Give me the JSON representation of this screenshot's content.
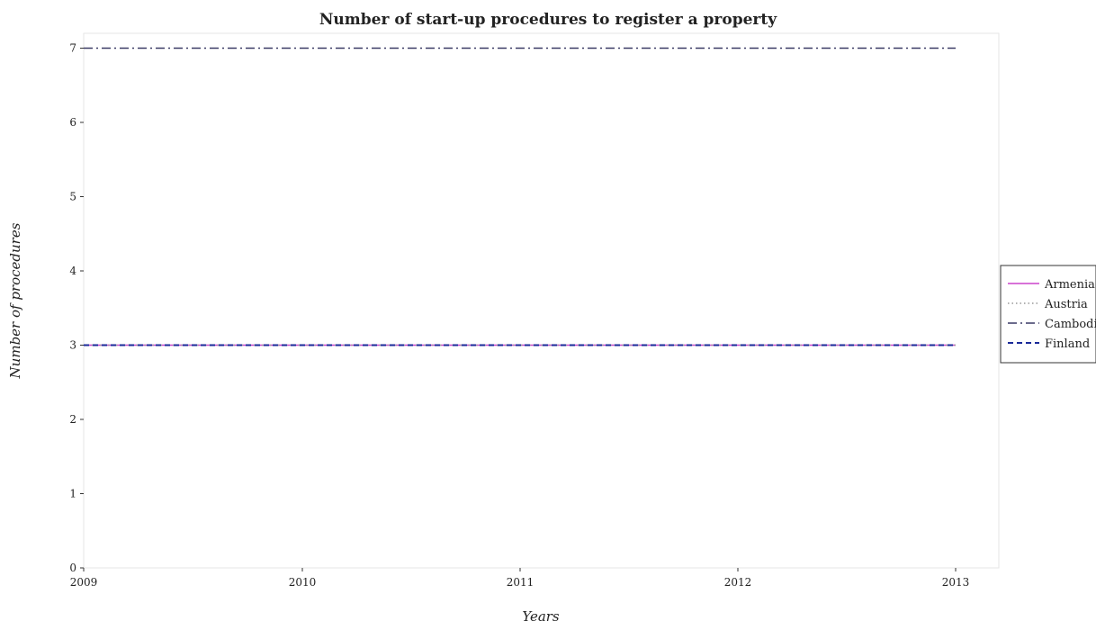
{
  "title": "Number of start-up procedures to register a property",
  "chart_data": {
    "type": "line",
    "title": "Number of start-up procedures to register a property",
    "xlabel": "Years",
    "ylabel": "Number of procedures",
    "categories": [
      "2009",
      "2010",
      "2011",
      "2012",
      "2013"
    ],
    "ylim": [
      0,
      7.2
    ],
    "yticks": [
      "0",
      "1",
      "2",
      "3",
      "4",
      "5",
      "6",
      "7"
    ],
    "grid": false,
    "legend_position": "right",
    "series": [
      {
        "name": "Armenia",
        "values": [
          3,
          3,
          3,
          3,
          3
        ],
        "color": "#cc44cc",
        "style": "solid"
      },
      {
        "name": "Austria",
        "values": [
          3,
          3,
          3,
          3,
          3
        ],
        "color": "#999999",
        "style": "dotted"
      },
      {
        "name": "Cambodia",
        "values": [
          7,
          7,
          7,
          7,
          7
        ],
        "color": "#3a3a66",
        "style": "dashdot"
      },
      {
        "name": "Finland",
        "values": [
          3,
          3,
          3,
          3,
          3
        ],
        "color": "#1a2a99",
        "style": "dashed"
      }
    ]
  }
}
